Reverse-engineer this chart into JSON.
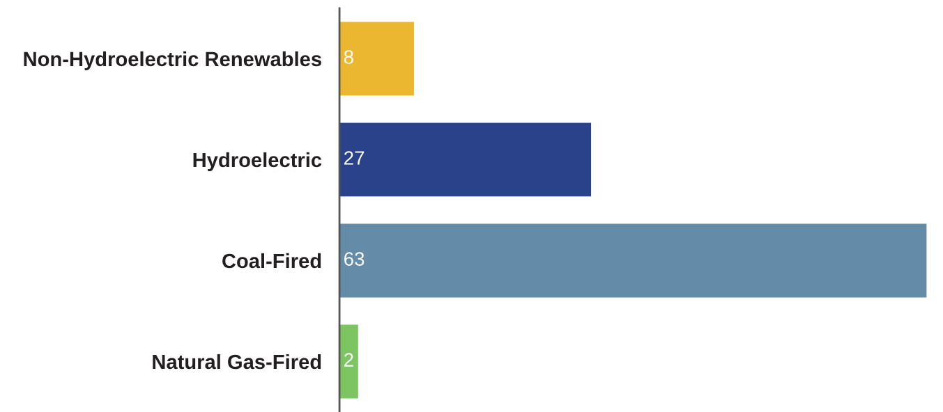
{
  "chart_data": {
    "type": "bar",
    "orientation": "horizontal",
    "categories": [
      "Non-Hydroelectric Renewables",
      "Hydroelectric",
      "Coal-Fired",
      "Natural Gas-Fired"
    ],
    "values": [
      8,
      27,
      63,
      2
    ],
    "colors": [
      "#ebb630",
      "#2a428a",
      "#648ba8",
      "#7dc462"
    ],
    "data_labels": true,
    "grid": false,
    "legend": false,
    "tick_labels": "y"
  }
}
